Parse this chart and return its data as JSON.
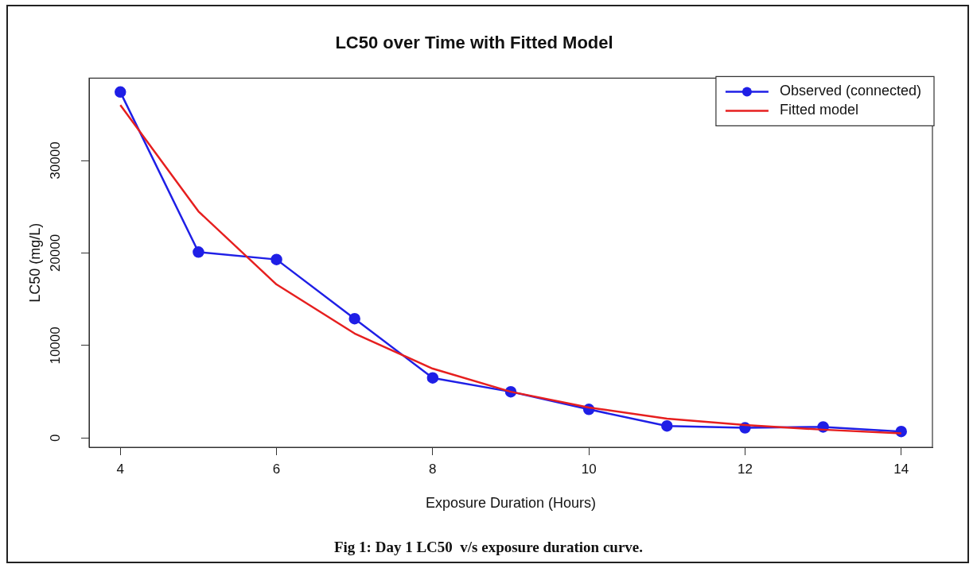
{
  "chart_data": {
    "type": "line",
    "title": "LC50 over Time with Fitted Model",
    "xlabel": "Exposure Duration (Hours)",
    "ylabel": "LC50 (mg/L)",
    "annotations": [
      "Fig 1: Day 1 LC50  v/s exposure duration curve."
    ],
    "x": [
      4,
      5,
      6,
      7,
      8,
      9,
      10,
      11,
      12,
      13,
      14
    ],
    "series": [
      {
        "name": "Observed (connected)",
        "color": "#1f1fe6",
        "marker": "circle",
        "values": [
          37400,
          20100,
          19300,
          12900,
          6500,
          5000,
          3100,
          1300,
          1100,
          1200,
          700
        ]
      },
      {
        "name": "Fitted model",
        "color": "#e61f1f",
        "marker": "none",
        "values": [
          36000,
          24500,
          16600,
          11300,
          7500,
          5000,
          3300,
          2100,
          1400,
          900,
          500
        ]
      }
    ],
    "xlim": [
      3.6,
      14.4
    ],
    "xticks": [
      4,
      6,
      8,
      10,
      12,
      14
    ],
    "ylim": [
      -1000,
      38900
    ],
    "yticks": [
      0,
      10000,
      20000,
      30000
    ],
    "grid": false,
    "legend": "top right",
    "line_style": "solid"
  }
}
